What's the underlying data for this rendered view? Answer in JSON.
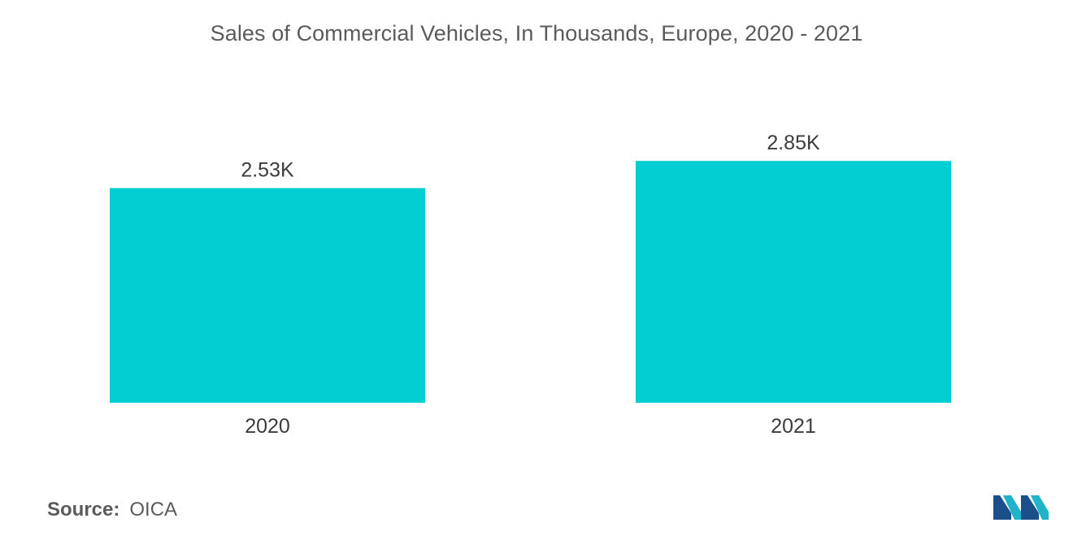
{
  "chart_data": {
    "type": "bar",
    "title": "Sales of Commercial Vehicles, In Thousands, Europe, 2020 - 2021",
    "categories": [
      "2020",
      "2021"
    ],
    "values": [
      2.53,
      2.85
    ],
    "data_labels": [
      "2.53K",
      "2.85K"
    ],
    "xlabel": "",
    "ylabel": "",
    "ylim": [
      0,
      3.2
    ],
    "grid": false,
    "legend": "none",
    "bar_color": "#00ced1"
  },
  "source": {
    "key": "Source:",
    "value": "OICA"
  },
  "logo": {
    "icon": "mordor-intelligence-logo-icon",
    "colors": [
      "#1b4f8a",
      "#22b3c9"
    ]
  }
}
